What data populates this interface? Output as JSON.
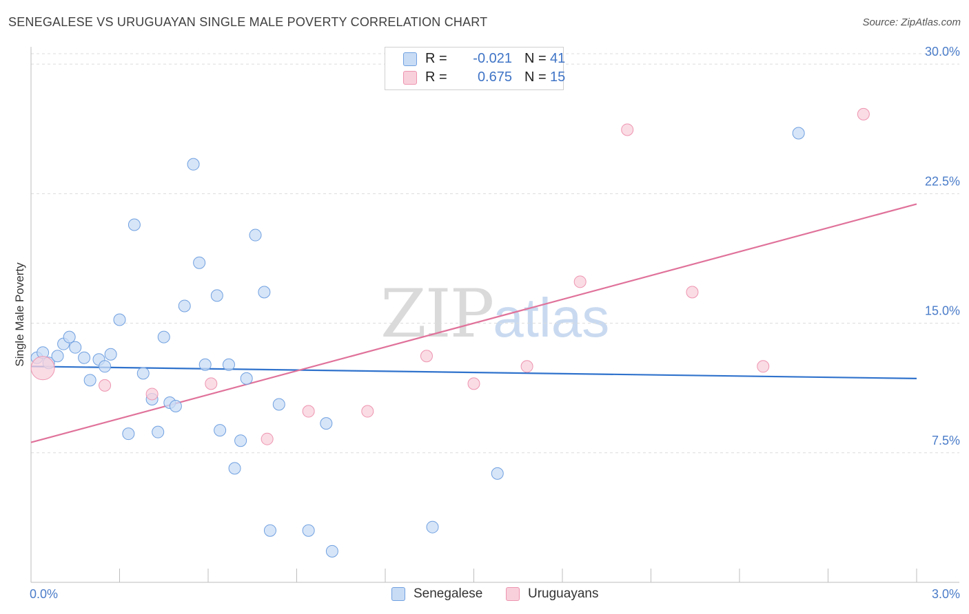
{
  "title": "SENEGALESE VS URUGUAYAN SINGLE MALE POVERTY CORRELATION CHART",
  "source": "Source: ZipAtlas.com",
  "watermark": {
    "zip": "ZIP",
    "atlas": "atlas"
  },
  "legend": {
    "rows": [
      {
        "r_label": "R =",
        "r_value": "-0.021",
        "n_label": "N =",
        "n_value": "41",
        "color": "#b8d0f2"
      },
      {
        "r_label": "R =",
        "r_value": "0.675",
        "n_label": "N =",
        "n_value": "15",
        "color": "#f8c3d3"
      }
    ]
  },
  "bottom_legend": [
    {
      "label": "Senegalese",
      "color": "#b8d0f2"
    },
    {
      "label": "Uruguayans",
      "color": "#f8c3d3"
    }
  ],
  "chart_data": {
    "type": "scatter",
    "title": "SENEGALESE VS URUGUAYAN SINGLE MALE POVERTY CORRELATION CHART",
    "xlabel": "",
    "ylabel": "Single Male Poverty",
    "xlim": [
      0.0,
      3.0
    ],
    "ylim": [
      0.0,
      31.0
    ],
    "x_tick_labels": [
      "0.0%",
      "3.0%"
    ],
    "y_ticks": [
      7.5,
      15.0,
      22.5,
      30.0
    ],
    "y_tick_labels": [
      "7.5%",
      "15.0%",
      "22.5%",
      "30.0%"
    ],
    "grid": true,
    "series": [
      {
        "name": "Senegalese",
        "color": "#6fa0e0",
        "fill": "#c9dcf5",
        "trend": {
          "x": [
            0.0,
            3.0
          ],
          "y": [
            12.5,
            11.8
          ],
          "color": "#2f72cc"
        },
        "points": [
          {
            "x": 0.02,
            "y": 13.0
          },
          {
            "x": 0.04,
            "y": 13.3
          },
          {
            "x": 0.06,
            "y": 12.7
          },
          {
            "x": 0.09,
            "y": 13.1
          },
          {
            "x": 0.11,
            "y": 13.8
          },
          {
            "x": 0.13,
            "y": 14.2
          },
          {
            "x": 0.15,
            "y": 13.6
          },
          {
            "x": 0.18,
            "y": 13.0
          },
          {
            "x": 0.2,
            "y": 11.7
          },
          {
            "x": 0.23,
            "y": 12.9
          },
          {
            "x": 0.25,
            "y": 12.5
          },
          {
            "x": 0.27,
            "y": 13.2
          },
          {
            "x": 0.3,
            "y": 15.2
          },
          {
            "x": 0.33,
            "y": 8.6
          },
          {
            "x": 0.35,
            "y": 20.7
          },
          {
            "x": 0.38,
            "y": 12.1
          },
          {
            "x": 0.41,
            "y": 10.6
          },
          {
            "x": 0.43,
            "y": 8.7
          },
          {
            "x": 0.45,
            "y": 14.2
          },
          {
            "x": 0.47,
            "y": 10.4
          },
          {
            "x": 0.49,
            "y": 10.2
          },
          {
            "x": 0.52,
            "y": 16.0
          },
          {
            "x": 0.55,
            "y": 24.2
          },
          {
            "x": 0.57,
            "y": 18.5
          },
          {
            "x": 0.59,
            "y": 12.6
          },
          {
            "x": 0.63,
            "y": 16.6
          },
          {
            "x": 0.64,
            "y": 8.8
          },
          {
            "x": 0.67,
            "y": 12.6
          },
          {
            "x": 0.69,
            "y": 6.6
          },
          {
            "x": 0.71,
            "y": 8.2
          },
          {
            "x": 0.73,
            "y": 11.8
          },
          {
            "x": 0.76,
            "y": 20.1
          },
          {
            "x": 0.79,
            "y": 16.8
          },
          {
            "x": 0.81,
            "y": 3.0
          },
          {
            "x": 0.84,
            "y": 10.3
          },
          {
            "x": 0.94,
            "y": 3.0
          },
          {
            "x": 1.0,
            "y": 9.2
          },
          {
            "x": 1.02,
            "y": 1.8
          },
          {
            "x": 1.36,
            "y": 3.2
          },
          {
            "x": 1.58,
            "y": 6.3
          },
          {
            "x": 2.6,
            "y": 26.0
          }
        ]
      },
      {
        "name": "Uruguayans",
        "color": "#ee94b0",
        "fill": "#f8d0dc",
        "trend": {
          "x": [
            0.0,
            3.0
          ],
          "y": [
            8.1,
            21.9
          ],
          "color": "#e0729a"
        },
        "points": [
          {
            "x": 0.04,
            "y": 12.4,
            "large": true
          },
          {
            "x": 0.25,
            "y": 11.4
          },
          {
            "x": 0.41,
            "y": 10.9
          },
          {
            "x": 0.61,
            "y": 11.5
          },
          {
            "x": 0.8,
            "y": 8.3
          },
          {
            "x": 0.94,
            "y": 9.9
          },
          {
            "x": 1.14,
            "y": 9.9
          },
          {
            "x": 1.34,
            "y": 13.1
          },
          {
            "x": 1.5,
            "y": 11.5
          },
          {
            "x": 1.68,
            "y": 12.5
          },
          {
            "x": 1.86,
            "y": 17.4
          },
          {
            "x": 2.02,
            "y": 26.2
          },
          {
            "x": 2.24,
            "y": 16.8
          },
          {
            "x": 2.48,
            "y": 12.5
          },
          {
            "x": 2.82,
            "y": 27.1
          }
        ]
      }
    ]
  }
}
